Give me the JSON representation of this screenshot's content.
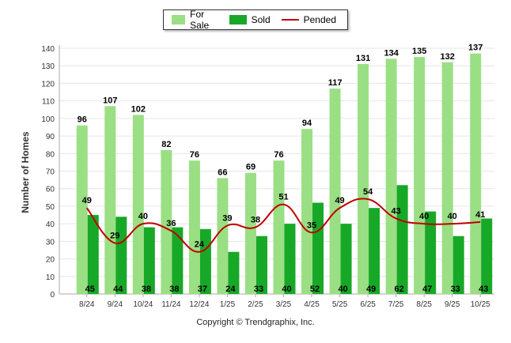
{
  "chart_data": {
    "type": "bar",
    "ylabel": "Number of Homes",
    "xlabel": "",
    "ylim": [
      0,
      140
    ],
    "yticks": [
      0,
      10,
      20,
      30,
      40,
      50,
      60,
      70,
      80,
      90,
      100,
      110,
      120,
      130,
      140
    ],
    "categories": [
      "8/24",
      "9/24",
      "10/24",
      "11/24",
      "12/24",
      "1/25",
      "2/25",
      "3/25",
      "4/25",
      "5/25",
      "6/25",
      "7/25",
      "8/25",
      "9/25",
      "10/25"
    ],
    "series": [
      {
        "name": "For Sale",
        "kind": "bar",
        "color": "#9ADF84",
        "values": [
          96,
          107,
          102,
          82,
          76,
          66,
          69,
          76,
          94,
          117,
          131,
          134,
          135,
          132,
          137
        ]
      },
      {
        "name": "Sold",
        "kind": "bar",
        "color": "#17A827",
        "values": [
          45,
          44,
          38,
          38,
          37,
          24,
          33,
          40,
          52,
          40,
          49,
          62,
          47,
          33,
          43
        ]
      },
      {
        "name": "Pended",
        "kind": "line",
        "color": "#C00000",
        "values": [
          49,
          29,
          40,
          36,
          24,
          39,
          38,
          51,
          35,
          49,
          54,
          43,
          40,
          40,
          41
        ]
      }
    ]
  },
  "footer": {
    "copyright": "Copyright © Trendgraphix, Inc."
  }
}
